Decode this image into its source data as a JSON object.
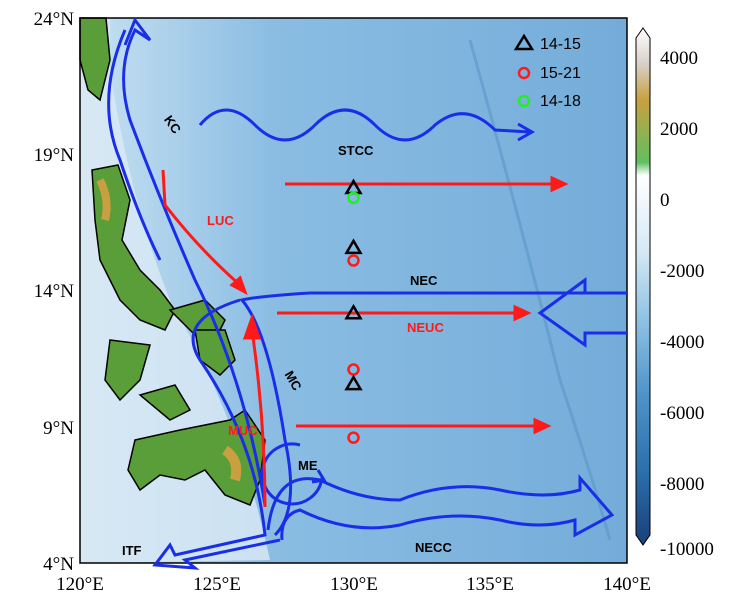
{
  "map": {
    "lon_ticks": [
      "120°E",
      "125°E",
      "130°E",
      "135°E",
      "140°E"
    ],
    "lat_ticks": [
      "4°N",
      "9°N",
      "14°N",
      "19°N",
      "24°N"
    ],
    "lon_range": [
      120,
      140
    ],
    "lat_range": [
      4,
      24
    ],
    "currents": [
      {
        "label": "KC",
        "color": "#000000"
      },
      {
        "label": "LUC",
        "color": "#ff1a1a"
      },
      {
        "label": "STCC",
        "color": "#000000"
      },
      {
        "label": "NEC",
        "color": "#000000"
      },
      {
        "label": "NEUC",
        "color": "#ff1a1a"
      },
      {
        "label": "MC",
        "color": "#000000"
      },
      {
        "label": "MUC",
        "color": "#ff1a1a"
      },
      {
        "label": "ME",
        "color": "#000000"
      },
      {
        "label": "ITF",
        "color": "#000000"
      },
      {
        "label": "NECC",
        "color": "#000000"
      }
    ],
    "legend": [
      {
        "label": "14-15",
        "marker": "triangle",
        "color": "#000000"
      },
      {
        "label": "15-21",
        "marker": "circle",
        "color": "#ff1a1a"
      },
      {
        "label": "14-18",
        "marker": "circle",
        "color": "#22ee22"
      }
    ],
    "stations": [
      {
        "lon": 130,
        "lat": 17.8,
        "set": 0
      },
      {
        "lon": 130,
        "lat": 17.4,
        "set": 2
      },
      {
        "lon": 130,
        "lat": 15.6,
        "set": 0
      },
      {
        "lon": 130,
        "lat": 15.1,
        "set": 1
      },
      {
        "lon": 130,
        "lat": 13.2,
        "set": 0
      },
      {
        "lon": 130,
        "lat": 11.1,
        "set": 1
      },
      {
        "lon": 130,
        "lat": 10.6,
        "set": 0
      },
      {
        "lon": 130,
        "lat": 8.6,
        "set": 1
      }
    ],
    "colors": {
      "current": "#1a2ee8",
      "undercurrent": "#ff1a1a",
      "ocean": "#6fa8d8",
      "land": "#5a9e3a"
    }
  },
  "colorbar": {
    "ticks": [
      "4000",
      "2000",
      "0",
      "-2000",
      "-4000",
      "-6000",
      "-8000",
      "-10000"
    ],
    "range": [
      -10000,
      4000
    ]
  }
}
